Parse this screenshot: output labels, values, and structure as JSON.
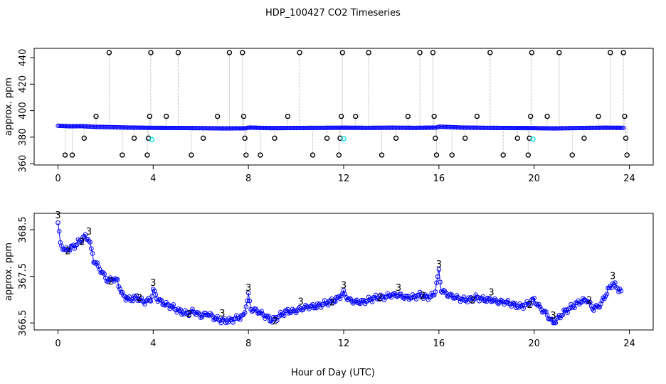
{
  "chart_data": [
    {
      "type": "scatter",
      "panel": "top",
      "title": "HDP_100427  CO2 Timeseries",
      "ylabel": "approx. ppm",
      "xlabel": "",
      "xlim": [
        -1,
        25
      ],
      "ylim": [
        359,
        447
      ],
      "xticks": [
        0,
        4,
        8,
        12,
        16,
        20,
        24
      ],
      "yticks": [
        360,
        380,
        400,
        420,
        440
      ],
      "grid": false,
      "colors": {
        "series_main": "#0000ff",
        "outlier": "#000000",
        "cyan": "#00e5ee",
        "trace": "#b0b0b0"
      },
      "baseline_series": [
        {
          "x": 0,
          "y": 388.6
        },
        {
          "x": 0.5,
          "y": 388.2
        },
        {
          "x": 1,
          "y": 388.3
        },
        {
          "x": 1.5,
          "y": 387.8
        },
        {
          "x": 2,
          "y": 387.6
        },
        {
          "x": 3,
          "y": 387.2
        },
        {
          "x": 4,
          "y": 387.0
        },
        {
          "x": 5,
          "y": 386.9
        },
        {
          "x": 6,
          "y": 386.8
        },
        {
          "x": 7,
          "y": 386.6
        },
        {
          "x": 7.9,
          "y": 386.7
        },
        {
          "x": 8,
          "y": 387.2
        },
        {
          "x": 9,
          "y": 386.8
        },
        {
          "x": 10,
          "y": 386.9
        },
        {
          "x": 11,
          "y": 387.0
        },
        {
          "x": 12,
          "y": 387.1
        },
        {
          "x": 13,
          "y": 387.0
        },
        {
          "x": 14,
          "y": 387.1
        },
        {
          "x": 15,
          "y": 387.0
        },
        {
          "x": 15.9,
          "y": 387.2
        },
        {
          "x": 16,
          "y": 387.9
        },
        {
          "x": 17,
          "y": 387.2
        },
        {
          "x": 18,
          "y": 387.0
        },
        {
          "x": 19,
          "y": 386.9
        },
        {
          "x": 20,
          "y": 386.8
        },
        {
          "x": 20.8,
          "y": 386.6
        },
        {
          "x": 22,
          "y": 386.9
        },
        {
          "x": 23,
          "y": 387.1
        },
        {
          "x": 23.8,
          "y": 387.0
        }
      ],
      "outliers": [
        {
          "x": 0.3,
          "y": 366.5
        },
        {
          "x": 0.6,
          "y": 366.5
        },
        {
          "x": 1.1,
          "y": 379.2
        },
        {
          "x": 1.6,
          "y": 395.7
        },
        {
          "x": 2.15,
          "y": 443.8
        },
        {
          "x": 2.7,
          "y": 366.5
        },
        {
          "x": 3.2,
          "y": 379.2
        },
        {
          "x": 3.75,
          "y": 366.5
        },
        {
          "x": 3.8,
          "y": 379.2
        },
        {
          "x": 3.85,
          "y": 395.7
        },
        {
          "x": 3.9,
          "y": 443.8
        },
        {
          "x": 4.55,
          "y": 395.7
        },
        {
          "x": 5.05,
          "y": 443.8
        },
        {
          "x": 5.6,
          "y": 366.5
        },
        {
          "x": 6.1,
          "y": 379.2
        },
        {
          "x": 6.7,
          "y": 395.7
        },
        {
          "x": 7.2,
          "y": 443.8
        },
        {
          "x": 7.75,
          "y": 443.8
        },
        {
          "x": 7.8,
          "y": 395.7
        },
        {
          "x": 7.85,
          "y": 379.2
        },
        {
          "x": 7.9,
          "y": 366.5
        },
        {
          "x": 8.5,
          "y": 366.5
        },
        {
          "x": 9.1,
          "y": 379.2
        },
        {
          "x": 9.65,
          "y": 395.7
        },
        {
          "x": 10.15,
          "y": 443.8
        },
        {
          "x": 10.7,
          "y": 366.5
        },
        {
          "x": 11.3,
          "y": 379.2
        },
        {
          "x": 11.8,
          "y": 366.5
        },
        {
          "x": 11.85,
          "y": 379.2
        },
        {
          "x": 11.9,
          "y": 395.7
        },
        {
          "x": 11.95,
          "y": 443.8
        },
        {
          "x": 12.5,
          "y": 395.7
        },
        {
          "x": 13.05,
          "y": 443.8
        },
        {
          "x": 13.6,
          "y": 366.5
        },
        {
          "x": 14.2,
          "y": 379.2
        },
        {
          "x": 14.7,
          "y": 395.7
        },
        {
          "x": 15.2,
          "y": 443.8
        },
        {
          "x": 15.75,
          "y": 443.8
        },
        {
          "x": 15.8,
          "y": 395.7
        },
        {
          "x": 15.85,
          "y": 379.2
        },
        {
          "x": 15.9,
          "y": 366.5
        },
        {
          "x": 16.55,
          "y": 366.5
        },
        {
          "x": 17.1,
          "y": 379.2
        },
        {
          "x": 17.6,
          "y": 395.7
        },
        {
          "x": 18.15,
          "y": 443.8
        },
        {
          "x": 18.7,
          "y": 366.5
        },
        {
          "x": 19.3,
          "y": 379.2
        },
        {
          "x": 19.75,
          "y": 366.5
        },
        {
          "x": 19.8,
          "y": 379.2
        },
        {
          "x": 19.85,
          "y": 395.7
        },
        {
          "x": 19.9,
          "y": 443.8
        },
        {
          "x": 20.55,
          "y": 395.7
        },
        {
          "x": 21.05,
          "y": 443.8
        },
        {
          "x": 21.6,
          "y": 366.5
        },
        {
          "x": 22.1,
          "y": 379.2
        },
        {
          "x": 22.7,
          "y": 395.7
        },
        {
          "x": 23.2,
          "y": 443.8
        },
        {
          "x": 23.75,
          "y": 443.8
        },
        {
          "x": 23.8,
          "y": 395.7
        },
        {
          "x": 23.85,
          "y": 379.2
        },
        {
          "x": 23.9,
          "y": 366.5
        }
      ],
      "cyan_points": [
        {
          "x": 3.95,
          "y": 378.2
        },
        {
          "x": 12.0,
          "y": 378.8
        },
        {
          "x": 19.95,
          "y": 378.5
        }
      ]
    },
    {
      "type": "line",
      "panel": "bottom",
      "title": "",
      "ylabel": "approx. ppm",
      "xlabel": "Hour of Day (UTC)",
      "xlim": [
        -1,
        25
      ],
      "ylim": [
        366.35,
        368.85
      ],
      "xticks": [
        0,
        4,
        8,
        12,
        16,
        20,
        24
      ],
      "yticks": [
        366.5,
        367.5,
        368.5
      ],
      "ytick_labels": [
        "366.5",
        "367.5",
        "368.5"
      ],
      "grid": false,
      "colors": {
        "line": "#0000ff",
        "circle": "#0000ff",
        "label3": "#0000ff",
        "label2": "#00a000"
      },
      "series": [
        {
          "name": "CO2",
          "points": [
            {
              "x": 0.0,
              "y": 368.65
            },
            {
              "x": 0.1,
              "y": 368.2
            },
            {
              "x": 0.3,
              "y": 368.05
            },
            {
              "x": 0.5,
              "y": 368.1
            },
            {
              "x": 0.7,
              "y": 368.15
            },
            {
              "x": 0.9,
              "y": 368.25
            },
            {
              "x": 1.1,
              "y": 368.35
            },
            {
              "x": 1.3,
              "y": 368.3
            },
            {
              "x": 1.5,
              "y": 367.85
            },
            {
              "x": 1.7,
              "y": 367.7
            },
            {
              "x": 1.9,
              "y": 367.55
            },
            {
              "x": 2.1,
              "y": 367.4
            },
            {
              "x": 2.3,
              "y": 367.45
            },
            {
              "x": 2.5,
              "y": 367.4
            },
            {
              "x": 2.7,
              "y": 367.1
            },
            {
              "x": 3.0,
              "y": 367.0
            },
            {
              "x": 3.3,
              "y": 367.05
            },
            {
              "x": 3.6,
              "y": 366.95
            },
            {
              "x": 3.9,
              "y": 367.0
            },
            {
              "x": 4.0,
              "y": 367.2
            },
            {
              "x": 4.2,
              "y": 367.0
            },
            {
              "x": 4.5,
              "y": 366.9
            },
            {
              "x": 4.8,
              "y": 366.85
            },
            {
              "x": 5.1,
              "y": 366.75
            },
            {
              "x": 5.4,
              "y": 366.7
            },
            {
              "x": 5.7,
              "y": 366.75
            },
            {
              "x": 6.0,
              "y": 366.65
            },
            {
              "x": 6.3,
              "y": 366.7
            },
            {
              "x": 6.6,
              "y": 366.6
            },
            {
              "x": 6.9,
              "y": 366.55
            },
            {
              "x": 7.2,
              "y": 366.55
            },
            {
              "x": 7.5,
              "y": 366.6
            },
            {
              "x": 7.8,
              "y": 366.65
            },
            {
              "x": 8.0,
              "y": 367.1
            },
            {
              "x": 8.1,
              "y": 366.8
            },
            {
              "x": 8.4,
              "y": 366.75
            },
            {
              "x": 8.7,
              "y": 366.65
            },
            {
              "x": 9.0,
              "y": 366.55
            },
            {
              "x": 9.3,
              "y": 366.65
            },
            {
              "x": 9.6,
              "y": 366.75
            },
            {
              "x": 9.9,
              "y": 366.75
            },
            {
              "x": 10.2,
              "y": 366.8
            },
            {
              "x": 10.5,
              "y": 366.85
            },
            {
              "x": 10.8,
              "y": 366.85
            },
            {
              "x": 11.1,
              "y": 366.9
            },
            {
              "x": 11.4,
              "y": 366.95
            },
            {
              "x": 11.7,
              "y": 367.0
            },
            {
              "x": 12.0,
              "y": 367.15
            },
            {
              "x": 12.2,
              "y": 367.0
            },
            {
              "x": 12.5,
              "y": 366.95
            },
            {
              "x": 12.8,
              "y": 366.95
            },
            {
              "x": 13.1,
              "y": 367.0
            },
            {
              "x": 13.4,
              "y": 367.05
            },
            {
              "x": 13.7,
              "y": 367.05
            },
            {
              "x": 14.0,
              "y": 367.1
            },
            {
              "x": 14.3,
              "y": 367.1
            },
            {
              "x": 14.6,
              "y": 367.05
            },
            {
              "x": 14.9,
              "y": 367.05
            },
            {
              "x": 15.2,
              "y": 367.1
            },
            {
              "x": 15.5,
              "y": 367.05
            },
            {
              "x": 15.8,
              "y": 367.1
            },
            {
              "x": 16.0,
              "y": 367.6
            },
            {
              "x": 16.1,
              "y": 367.2
            },
            {
              "x": 16.4,
              "y": 367.1
            },
            {
              "x": 16.7,
              "y": 367.05
            },
            {
              "x": 17.0,
              "y": 367.0
            },
            {
              "x": 17.3,
              "y": 367.0
            },
            {
              "x": 17.6,
              "y": 367.05
            },
            {
              "x": 17.9,
              "y": 367.0
            },
            {
              "x": 18.2,
              "y": 367.0
            },
            {
              "x": 18.5,
              "y": 366.95
            },
            {
              "x": 18.8,
              "y": 366.95
            },
            {
              "x": 19.1,
              "y": 366.9
            },
            {
              "x": 19.4,
              "y": 366.85
            },
            {
              "x": 19.7,
              "y": 366.9
            },
            {
              "x": 20.0,
              "y": 367.0
            },
            {
              "x": 20.2,
              "y": 366.85
            },
            {
              "x": 20.5,
              "y": 366.7
            },
            {
              "x": 20.8,
              "y": 366.5
            },
            {
              "x": 21.0,
              "y": 366.6
            },
            {
              "x": 21.3,
              "y": 366.75
            },
            {
              "x": 21.6,
              "y": 366.85
            },
            {
              "x": 21.9,
              "y": 366.95
            },
            {
              "x": 22.2,
              "y": 367.0
            },
            {
              "x": 22.5,
              "y": 366.8
            },
            {
              "x": 22.8,
              "y": 366.9
            },
            {
              "x": 23.1,
              "y": 367.2
            },
            {
              "x": 23.3,
              "y": 367.35
            },
            {
              "x": 23.5,
              "y": 367.25
            },
            {
              "x": 23.7,
              "y": 367.15
            }
          ]
        }
      ],
      "annotations_3": [
        {
          "x": 0.0,
          "y": 368.65
        },
        {
          "x": 1.3,
          "y": 368.3
        },
        {
          "x": 4.0,
          "y": 367.2
        },
        {
          "x": 6.9,
          "y": 366.55
        },
        {
          "x": 8.0,
          "y": 367.1
        },
        {
          "x": 10.2,
          "y": 366.8
        },
        {
          "x": 12.0,
          "y": 367.15
        },
        {
          "x": 14.3,
          "y": 367.1
        },
        {
          "x": 16.0,
          "y": 367.6
        },
        {
          "x": 18.2,
          "y": 367.0
        },
        {
          "x": 20.8,
          "y": 366.5
        },
        {
          "x": 23.3,
          "y": 367.35
        }
      ],
      "annotations_2": [
        {
          "x": 0.3,
          "y": 368.05
        },
        {
          "x": 0.9,
          "y": 368.25
        },
        {
          "x": 2.1,
          "y": 367.4
        },
        {
          "x": 3.3,
          "y": 367.05
        },
        {
          "x": 5.4,
          "y": 366.7
        },
        {
          "x": 9.0,
          "y": 366.55
        },
        {
          "x": 11.4,
          "y": 366.95
        },
        {
          "x": 13.4,
          "y": 367.05
        },
        {
          "x": 15.2,
          "y": 367.1
        },
        {
          "x": 17.3,
          "y": 367.0
        },
        {
          "x": 19.7,
          "y": 366.9
        },
        {
          "x": 22.2,
          "y": 367.0
        }
      ]
    }
  ]
}
